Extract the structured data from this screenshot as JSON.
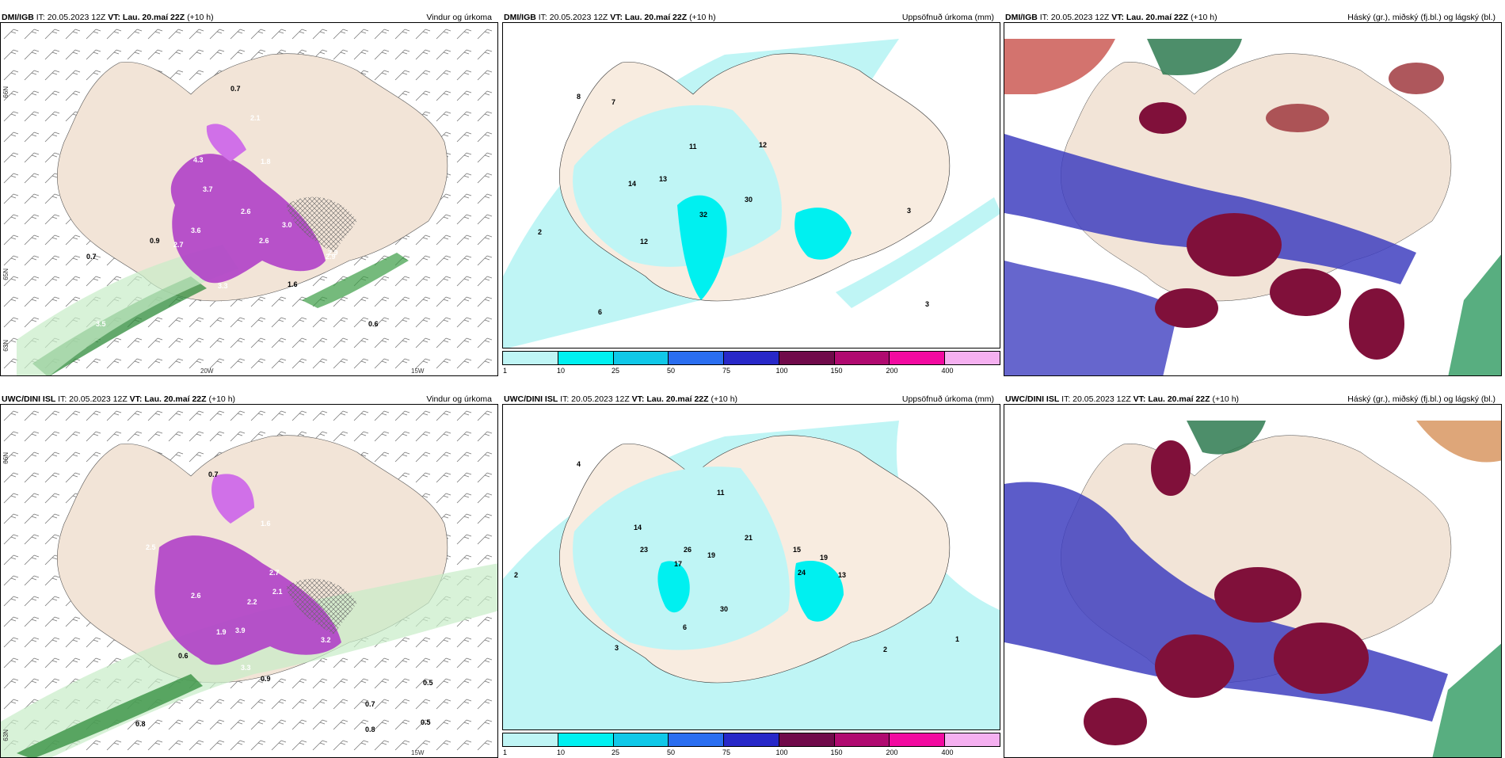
{
  "panels": [
    {
      "source": "DMI/IGB",
      "it": "IT: 20.05.2023 12Z",
      "vt": "VT: Lau. 20.maí 22Z",
      "lead": "(+10 h)",
      "title": "Vindur og úrkoma"
    },
    {
      "source": "DMI/IGB",
      "it": "IT: 20.05.2023 12Z",
      "vt": "VT: Lau. 20.maí 22Z",
      "lead": "(+10 h)",
      "title": "Uppsöfnuð úrkoma (mm)"
    },
    {
      "source": "DMI/IGB",
      "it": "IT: 20.05.2023 12Z",
      "vt": "VT: Lau. 20.maí 22Z",
      "lead": "(+10 h)",
      "title": "Háský (gr.), miðský (fj.bl.) og lágský (bl.)"
    },
    {
      "source": "UWC/DINI ISL",
      "it": "IT: 20.05.2023 12Z",
      "vt": "VT: Lau. 20.maí 22Z",
      "lead": "(+10 h)",
      "title": "Vindur og úrkoma"
    },
    {
      "source": "UWC/DINI ISL",
      "it": "IT: 20.05.2023 12Z",
      "vt": "VT: Lau. 20.maí 22Z",
      "lead": "(+10 h)",
      "title": "Uppsöfnuð úrkoma (mm)"
    },
    {
      "source": "UWC/DINI ISL",
      "it": "IT: 20.05.2023 12Z",
      "vt": "VT: Lau. 20.maí 22Z",
      "lead": "(+10 h)",
      "title": "Háský (gr.), miðský (fj.bl.) og lágský (bl.)"
    }
  ],
  "axis_labels": {
    "lat66": "66N",
    "lat65": "65N",
    "lat63": "63N",
    "lon20": "20W",
    "lon15": "15W"
  },
  "colorbar": {
    "ticks": [
      "1",
      "10",
      "25",
      "50",
      "75",
      "100",
      "150",
      "200",
      "400"
    ],
    "colors": [
      "#bff5f5",
      "#00f0f0",
      "#10c8e8",
      "#2a6ef0",
      "#2828c8",
      "#700a4a",
      "#b00a70",
      "#f20aa0",
      "#f5b0f0"
    ]
  },
  "wind_precip_top": [
    "0.7",
    "2.1",
    "3.7",
    "4.3",
    "2.6",
    "3.0",
    "3.6",
    "2.7",
    "2.6",
    "2.9",
    "3.3",
    "1.6",
    "0.9",
    "0.7",
    "0.6",
    "1.8",
    "2.9",
    "3.5"
  ],
  "wind_precip_bottom": [
    "0.7",
    "2.5",
    "2.6",
    "1.9",
    "3.9",
    "2.2",
    "2.1",
    "2.7",
    "3.2",
    "3.3",
    "0.9",
    "0.5",
    "0.6",
    "0.7",
    "0.5",
    "0.8",
    "0.8",
    "1.6"
  ],
  "accum_top": [
    "8",
    "7",
    "11",
    "12",
    "14",
    "13",
    "30",
    "32",
    "2",
    "12",
    "3",
    "6",
    "3"
  ],
  "accum_bottom": [
    "2",
    "4",
    "11",
    "14",
    "23",
    "26",
    "21",
    "19",
    "15",
    "24",
    "19",
    "13",
    "30",
    "17",
    "2",
    "3",
    "1",
    "6"
  ],
  "colors": {
    "land": "#f2e4d7",
    "green_light": "#c8ecc8",
    "green_dark": "#2e8b3a",
    "purple": "#b040c8",
    "purple_light": "#e070f0",
    "cyan_bg": "#bff5f5",
    "cloud_high": "#c8504a",
    "cloud_mid": "#80103a",
    "cloud_low": "#4040c0"
  }
}
